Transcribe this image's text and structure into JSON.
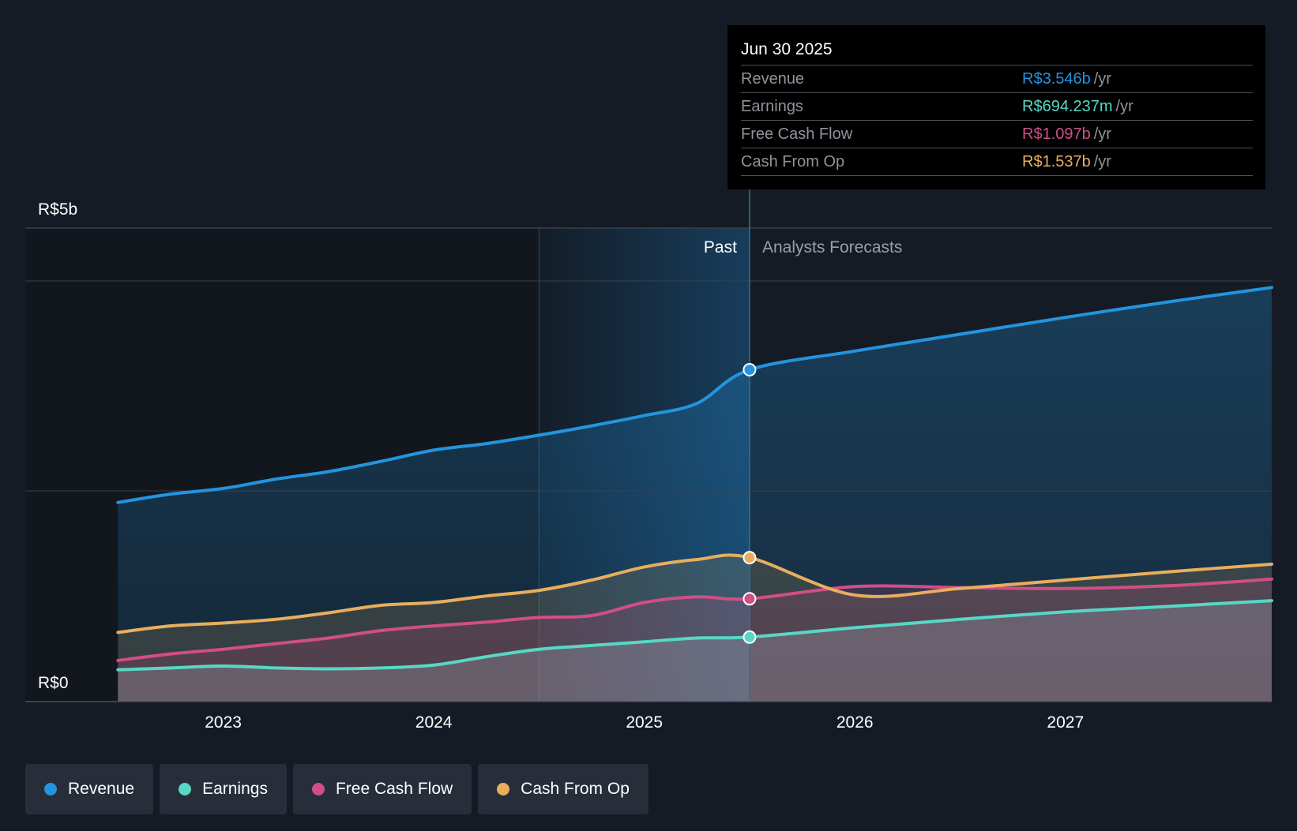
{
  "chart_data": {
    "type": "area",
    "y_axis": {
      "max_label": "R$5b",
      "min_label": "R$0",
      "ylim": [
        0,
        4.5
      ]
    },
    "x_axis": {
      "ticks": [
        "2023",
        "2024",
        "2025",
        "2026",
        "2027"
      ],
      "tick_values": [
        2023.0,
        2024.0,
        2025.0,
        2026.0,
        2027.0
      ],
      "xlim": [
        2022.3,
        2027.98
      ]
    },
    "divider": {
      "date": 2025.5,
      "past_label": "Past",
      "forecast_label": "Analysts Forecasts",
      "highlight_start": 2024.5
    },
    "grid": true,
    "series": [
      {
        "name": "Revenue",
        "key": "revenue",
        "color": "#2394df",
        "points": [
          [
            2022.5,
            2.13
          ],
          [
            2022.75,
            2.22
          ],
          [
            2023.0,
            2.28
          ],
          [
            2023.25,
            2.38
          ],
          [
            2023.5,
            2.46
          ],
          [
            2023.75,
            2.57
          ],
          [
            2024.0,
            2.69
          ],
          [
            2024.25,
            2.76
          ],
          [
            2024.5,
            2.85
          ],
          [
            2024.75,
            2.95
          ],
          [
            2025.0,
            3.06
          ],
          [
            2025.25,
            3.19
          ],
          [
            2025.5,
            3.55
          ],
          [
            2026.0,
            3.75
          ],
          [
            2026.5,
            3.93
          ],
          [
            2027.0,
            4.11
          ],
          [
            2027.5,
            4.28
          ],
          [
            2027.98,
            4.43
          ]
        ]
      },
      {
        "name": "Earnings",
        "key": "earnings",
        "color": "#58d7c6",
        "points": [
          [
            2022.5,
            0.34
          ],
          [
            2022.75,
            0.36
          ],
          [
            2023.0,
            0.38
          ],
          [
            2023.25,
            0.36
          ],
          [
            2023.5,
            0.35
          ],
          [
            2023.75,
            0.36
          ],
          [
            2024.0,
            0.39
          ],
          [
            2024.25,
            0.48
          ],
          [
            2024.5,
            0.56
          ],
          [
            2024.75,
            0.6
          ],
          [
            2025.0,
            0.64
          ],
          [
            2025.25,
            0.68
          ],
          [
            2025.5,
            0.69
          ],
          [
            2026.0,
            0.79
          ],
          [
            2026.5,
            0.88
          ],
          [
            2027.0,
            0.96
          ],
          [
            2027.5,
            1.02
          ],
          [
            2027.98,
            1.08
          ]
        ]
      },
      {
        "name": "Free Cash Flow",
        "key": "fcf",
        "color": "#d14e87",
        "points": [
          [
            2022.5,
            0.44
          ],
          [
            2022.75,
            0.51
          ],
          [
            2023.0,
            0.56
          ],
          [
            2023.25,
            0.62
          ],
          [
            2023.5,
            0.68
          ],
          [
            2023.75,
            0.76
          ],
          [
            2024.0,
            0.81
          ],
          [
            2024.25,
            0.85
          ],
          [
            2024.5,
            0.9
          ],
          [
            2024.75,
            0.92
          ],
          [
            2025.0,
            1.06
          ],
          [
            2025.25,
            1.12
          ],
          [
            2025.5,
            1.1
          ],
          [
            2026.0,
            1.23
          ],
          [
            2026.5,
            1.22
          ],
          [
            2027.0,
            1.21
          ],
          [
            2027.5,
            1.24
          ],
          [
            2027.98,
            1.31
          ]
        ]
      },
      {
        "name": "Cash From Op",
        "key": "cfo",
        "color": "#e8ae5e",
        "points": [
          [
            2022.5,
            0.74
          ],
          [
            2022.75,
            0.81
          ],
          [
            2023.0,
            0.84
          ],
          [
            2023.25,
            0.88
          ],
          [
            2023.5,
            0.95
          ],
          [
            2023.75,
            1.03
          ],
          [
            2024.0,
            1.06
          ],
          [
            2024.25,
            1.13
          ],
          [
            2024.5,
            1.19
          ],
          [
            2024.75,
            1.3
          ],
          [
            2025.0,
            1.44
          ],
          [
            2025.25,
            1.52
          ],
          [
            2025.5,
            1.54
          ],
          [
            2026.0,
            1.14
          ],
          [
            2026.5,
            1.21
          ],
          [
            2027.0,
            1.3
          ],
          [
            2027.5,
            1.39
          ],
          [
            2027.98,
            1.47
          ]
        ]
      }
    ]
  },
  "tooltip": {
    "date": "Jun 30 2025",
    "unit": "/yr",
    "rows": [
      {
        "label": "Revenue",
        "value": "R$3.546b",
        "color": "#2394df"
      },
      {
        "label": "Earnings",
        "value": "R$694.237m",
        "color": "#58d7c6"
      },
      {
        "label": "Free Cash Flow",
        "value": "R$1.097b",
        "color": "#d14e87"
      },
      {
        "label": "Cash From Op",
        "value": "R$1.537b",
        "color": "#e8ae5e"
      }
    ]
  },
  "legend": [
    {
      "label": "Revenue",
      "color": "#2394df"
    },
    {
      "label": "Earnings",
      "color": "#58d7c6"
    },
    {
      "label": "Free Cash Flow",
      "color": "#d14e87"
    },
    {
      "label": "Cash From Op",
      "color": "#e8ae5e"
    }
  ]
}
